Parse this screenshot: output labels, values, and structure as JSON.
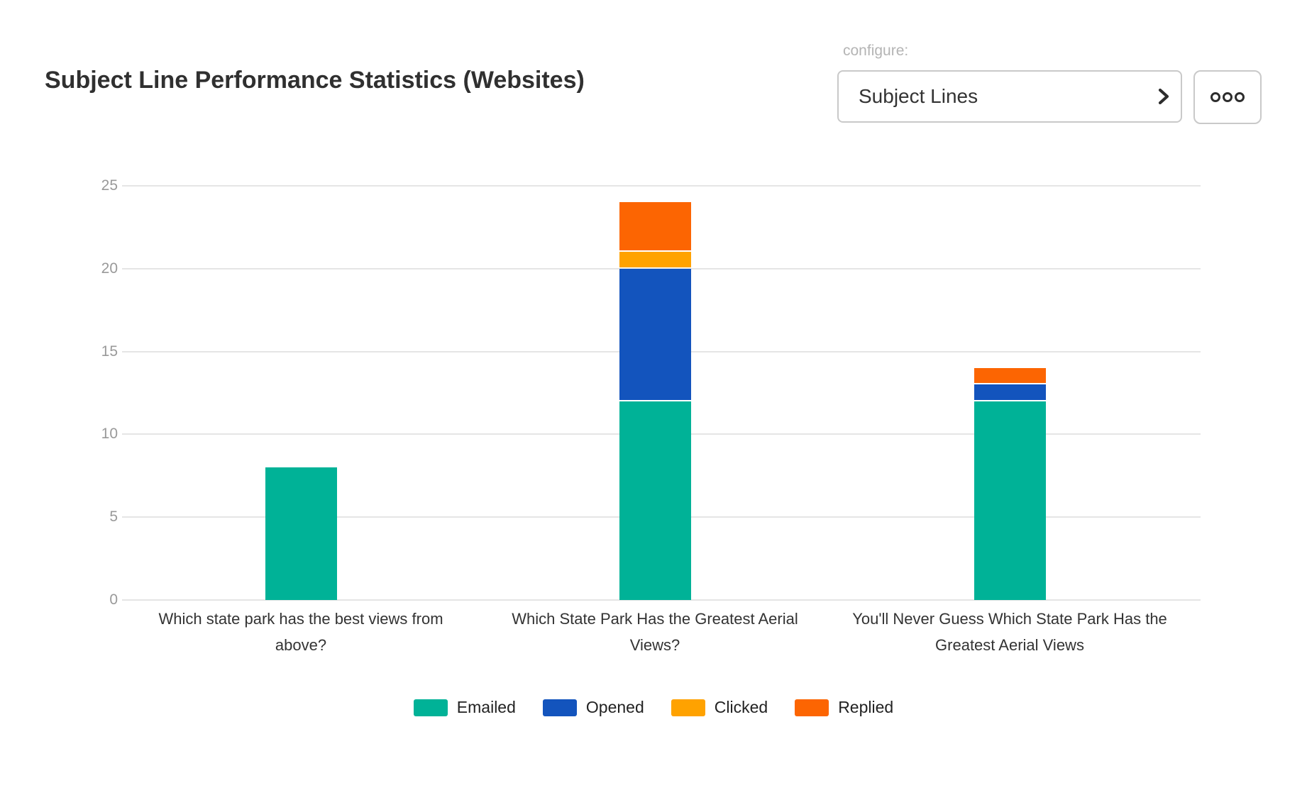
{
  "header": {
    "title": "Subject Line Performance Statistics (Websites)"
  },
  "configure": {
    "label": "configure:",
    "selected": "Subject Lines",
    "chevron_icon": "chevron-right",
    "more_icon": "horizontal-ellipsis"
  },
  "chart_data": {
    "type": "bar",
    "stacked": true,
    "title": "",
    "xlabel": "",
    "ylabel": "",
    "ylim": [
      0,
      25
    ],
    "yticks": [
      0,
      5,
      10,
      15,
      20,
      25
    ],
    "grid": "horizontal",
    "grid_color": "#e5e5e5",
    "axis_label_color": "#999999",
    "category_label_color": "#333333",
    "legend_position": "bottom-center",
    "categories": [
      "Which state park has the best views from above?",
      "Which State Park Has the Greatest Aerial Views?",
      "You'll Never Guess Which State Park Has the Greatest Aerial Views"
    ],
    "series": [
      {
        "name": "Emailed",
        "color": "#00b297",
        "values": [
          8,
          12,
          12
        ]
      },
      {
        "name": "Opened",
        "color": "#1354bd",
        "values": [
          0,
          8,
          1
        ]
      },
      {
        "name": "Clicked",
        "color": "#ffa200",
        "values": [
          0,
          1,
          0
        ]
      },
      {
        "name": "Replied",
        "color": "#fc6502",
        "values": [
          0,
          3,
          1
        ]
      }
    ],
    "totals": [
      8,
      24,
      14
    ]
  }
}
